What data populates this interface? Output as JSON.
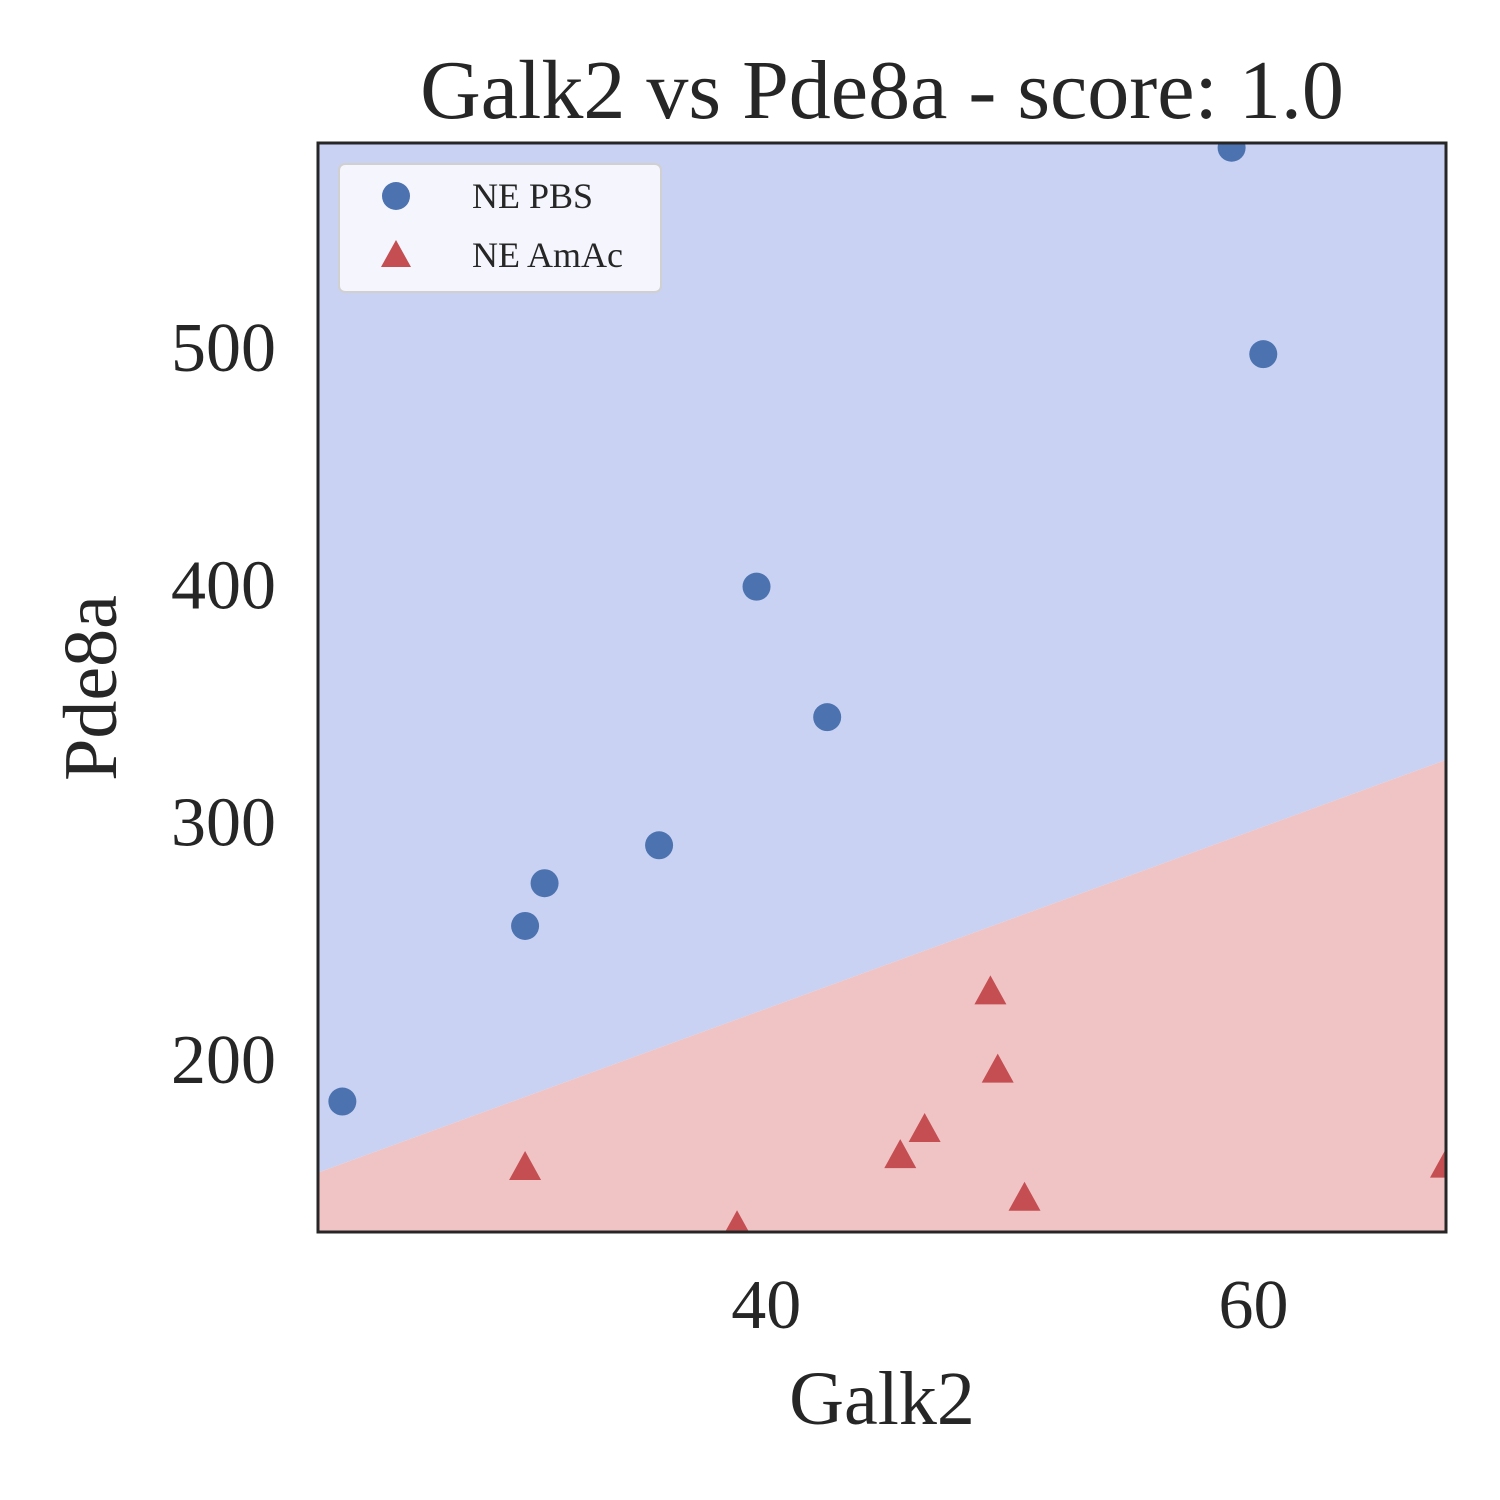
{
  "chart_data": {
    "type": "scatter",
    "title": "Galk2 vs Pde8a - score: 1.0",
    "xlabel": "Galk2",
    "ylabel": "Pde8a",
    "xlim": [
      21.6,
      67.9
    ],
    "ylim": [
      127,
      586
    ],
    "xticks": [
      40,
      60
    ],
    "yticks": [
      200,
      300,
      400,
      500
    ],
    "grid": false,
    "legend_position": "top-left",
    "decision_boundary": {
      "x": [
        21.6,
        67.9
      ],
      "y": [
        152,
        326
      ],
      "above_color": "#c9d2f2",
      "below_color": "#f0c4c4"
    },
    "series": [
      {
        "name": "NE PBS",
        "marker": "circle",
        "color": "#4c72b0",
        "points": [
          [
            22.6,
            182
          ],
          [
            30.1,
            256
          ],
          [
            30.9,
            274
          ],
          [
            35.6,
            290
          ],
          [
            39.6,
            399
          ],
          [
            42.5,
            344
          ],
          [
            59.1,
            584
          ],
          [
            60.4,
            497
          ]
        ]
      },
      {
        "name": "NE AmAc",
        "marker": "triangle",
        "color": "#c44e52",
        "points": [
          [
            30.1,
            154
          ],
          [
            38.8,
            129
          ],
          [
            45.5,
            159
          ],
          [
            46.5,
            170
          ],
          [
            49.2,
            228
          ],
          [
            49.5,
            195
          ],
          [
            50.6,
            141
          ],
          [
            67.9,
            155
          ]
        ]
      }
    ]
  }
}
